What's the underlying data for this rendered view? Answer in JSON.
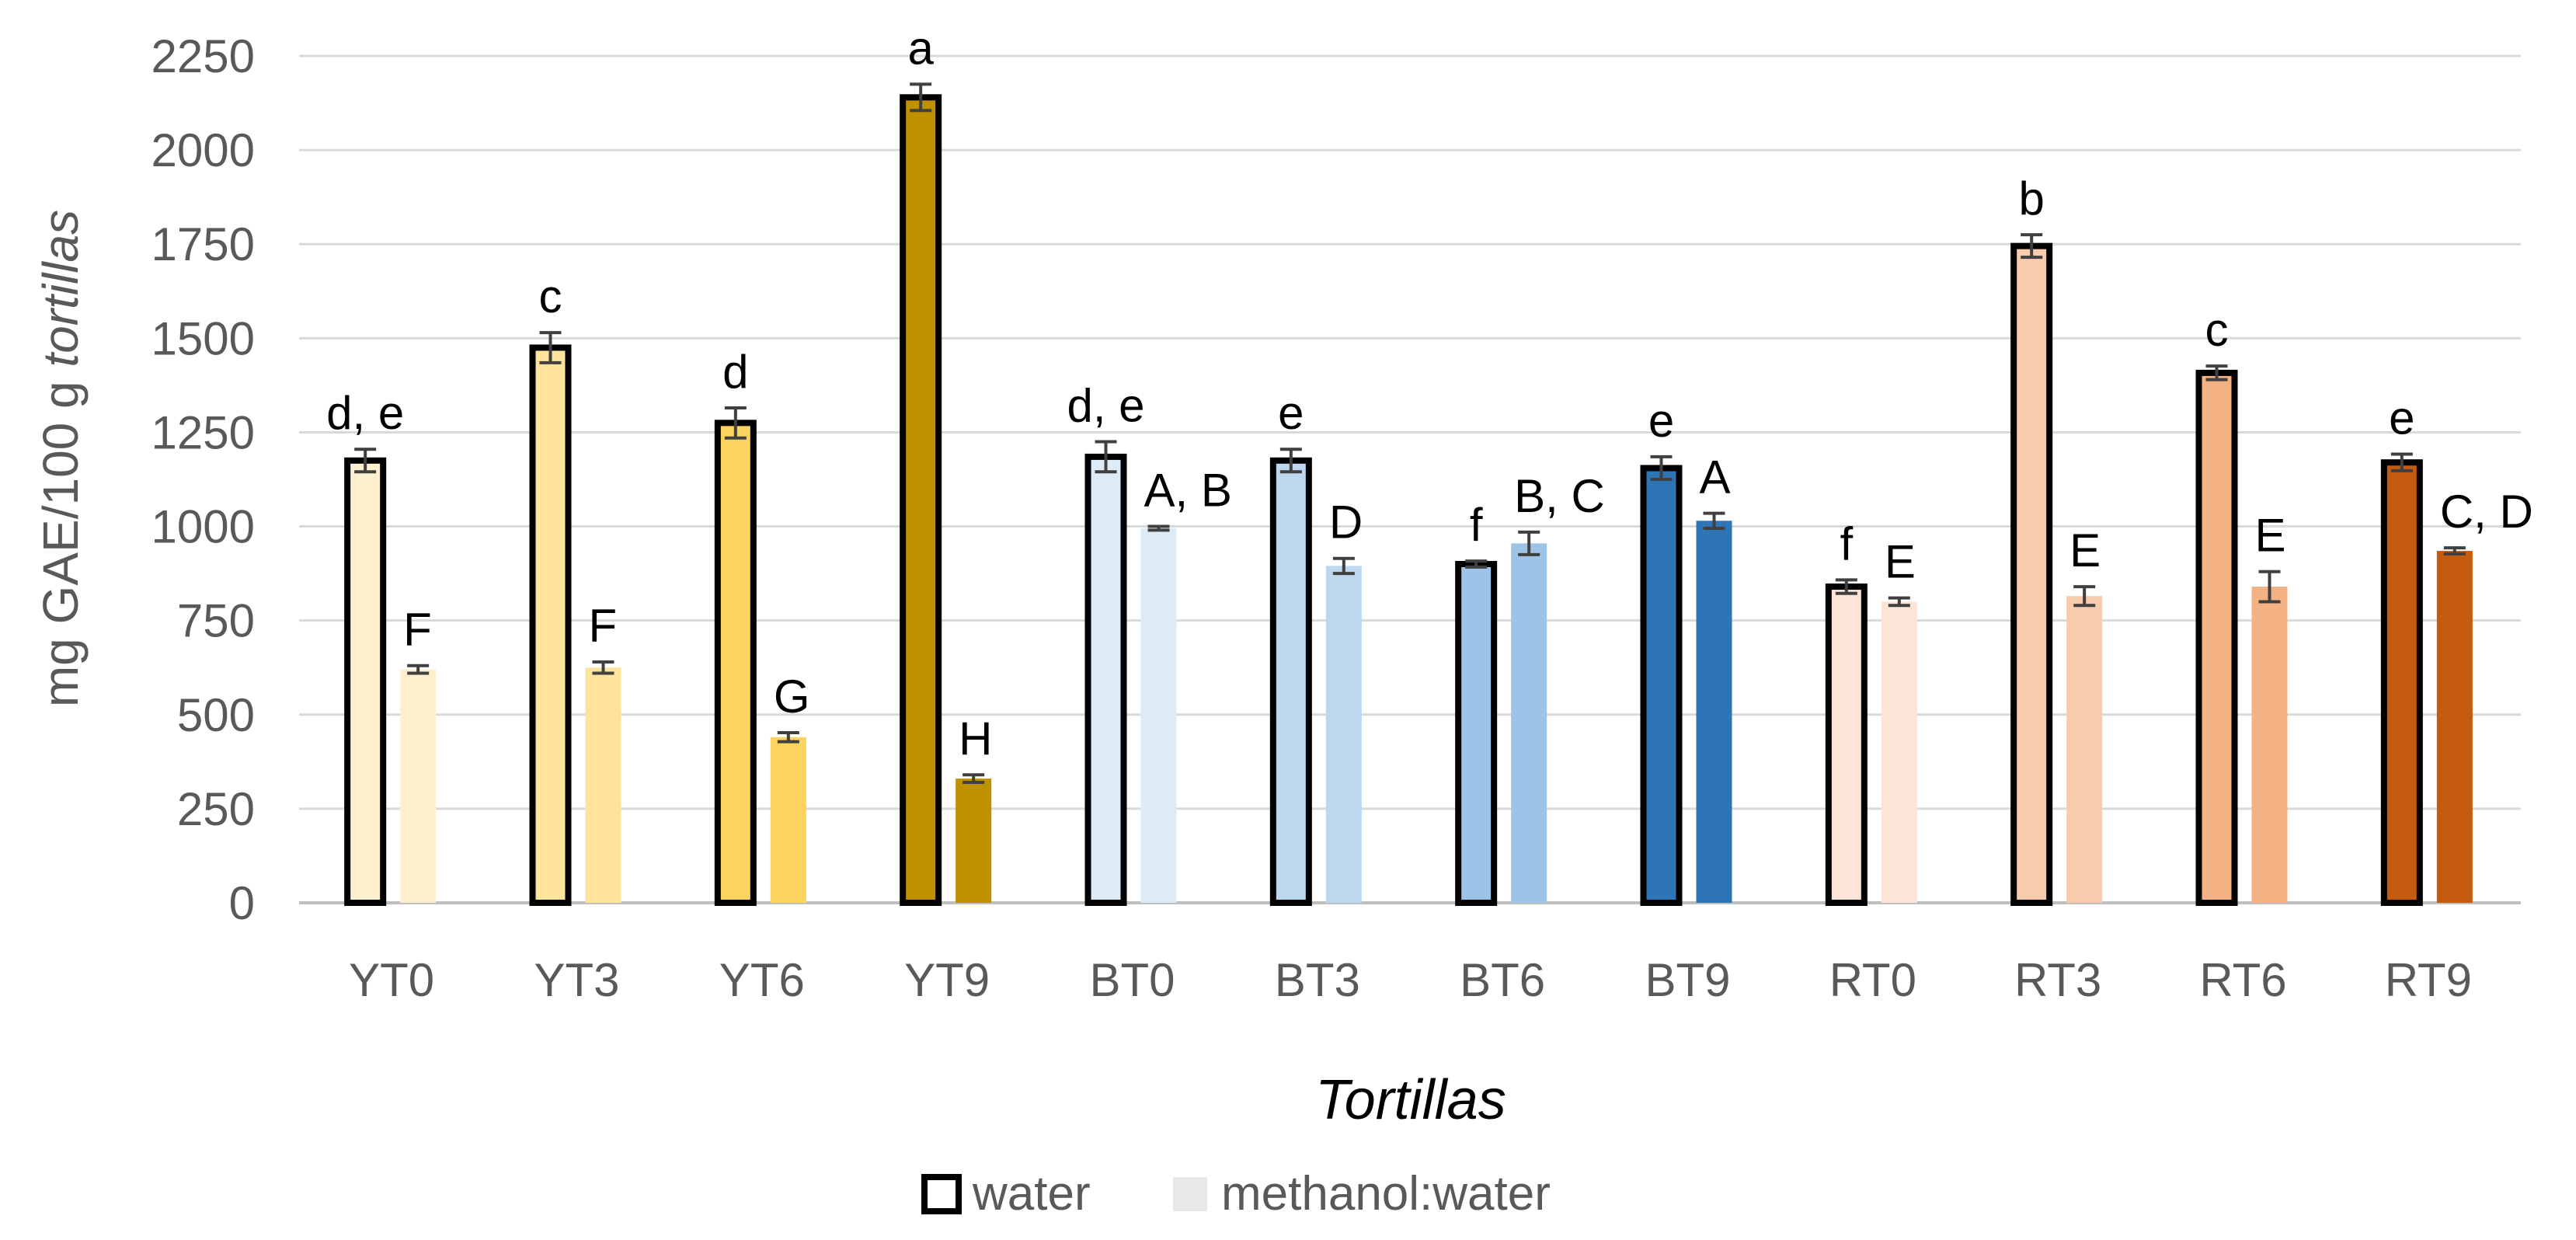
{
  "chart_data": {
    "type": "bar",
    "title": "",
    "xlabel": "Tortillas",
    "ylabel_prefix": "mg GAE/100 g ",
    "ylabel_italic": "tortillas",
    "ylim": [
      0,
      2250
    ],
    "yticks": [
      0,
      250,
      500,
      750,
      1000,
      1250,
      1500,
      1750,
      2000,
      2250
    ],
    "grid": true,
    "legend_position": "bottom-center",
    "categories": [
      "YT0",
      "YT3",
      "YT6",
      "YT9",
      "BT0",
      "BT3",
      "BT6",
      "BT9",
      "RT0",
      "RT3",
      "RT6",
      "RT9"
    ],
    "colors": [
      "#FEF0CE",
      "#FDE39C",
      "#FCD35E",
      "#BF9000",
      "#DDEBF7",
      "#BDD7EE",
      "#9DC3E6",
      "#2E75B6",
      "#FCE4D6",
      "#F8CBAD",
      "#F4B183",
      "#C55A11"
    ],
    "series": [
      {
        "name": "water",
        "outlined": true,
        "values": [
          1175,
          1475,
          1275,
          2140,
          1185,
          1175,
          900,
          1155,
          840,
          1745,
          1408,
          1170
        ],
        "errors": [
          30,
          40,
          40,
          35,
          40,
          30,
          8,
          30,
          18,
          30,
          18,
          22
        ],
        "letters": [
          "d, e",
          "c",
          "d",
          "a",
          "d, e",
          "e",
          "f",
          "e",
          "f",
          "b",
          "c",
          "e"
        ]
      },
      {
        "name": "methanol:water",
        "outlined": false,
        "values": [
          620,
          625,
          440,
          330,
          995,
          895,
          955,
          1015,
          800,
          815,
          840,
          935
        ],
        "errors": [
          10,
          15,
          12,
          10,
          5,
          20,
          30,
          20,
          10,
          25,
          40,
          8
        ],
        "letters": [
          "F",
          "F",
          "G",
          "H",
          "A, B",
          "D",
          "B, C",
          "A",
          "E",
          "E",
          "E",
          "C, D"
        ]
      }
    ],
    "legend": [
      "water",
      "methanol:water"
    ]
  }
}
